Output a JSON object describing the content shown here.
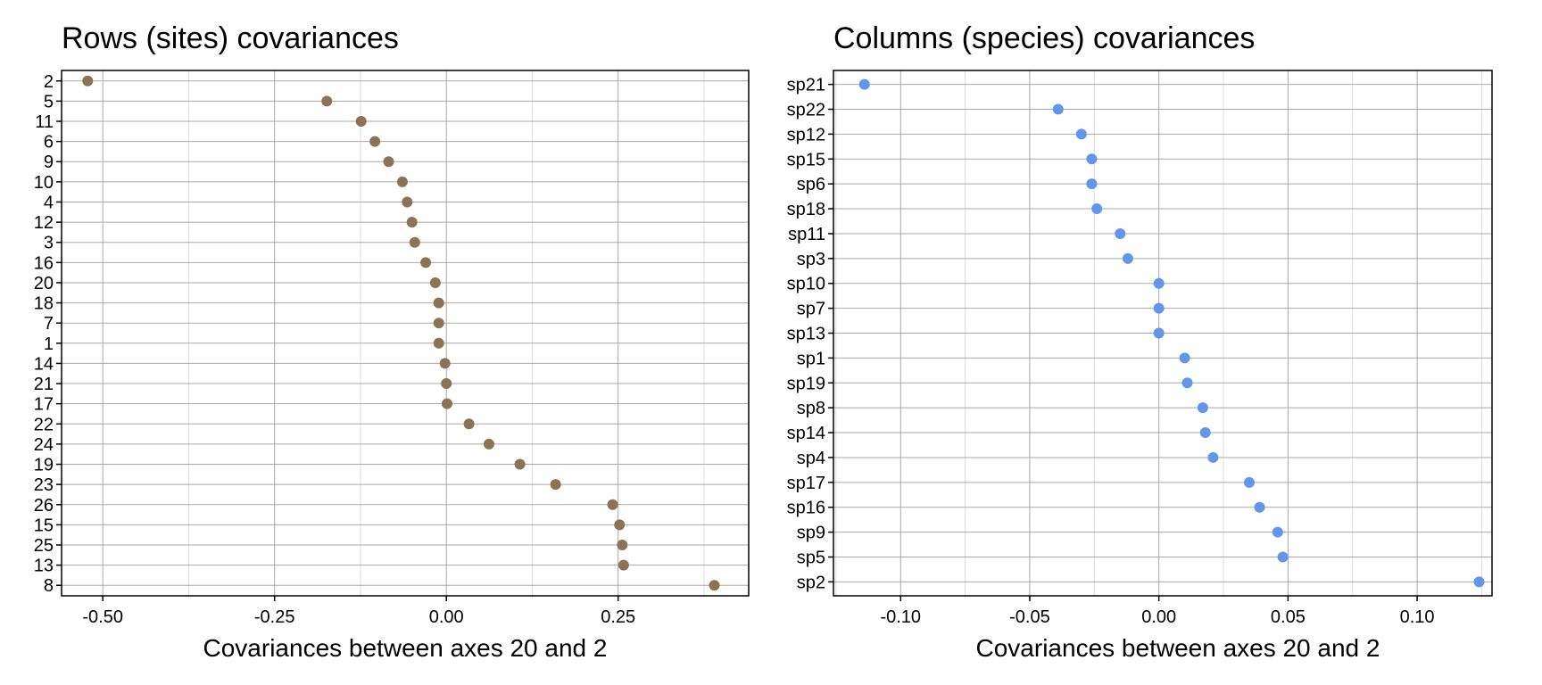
{
  "chart_data": [
    {
      "type": "scatter",
      "title": "Rows (sites) covariances",
      "xlabel": "Covariances between axes 20 and 2",
      "ylabel": "",
      "xlim": [
        -0.56,
        0.44
      ],
      "xticks": [
        -0.5,
        -0.25,
        0.0,
        0.25
      ],
      "xtick_labels": [
        "-0.50",
        "-0.25",
        "0.00",
        "0.25"
      ],
      "color": "#8B7355",
      "categories": [
        "2",
        "5",
        "11",
        "6",
        "9",
        "10",
        "4",
        "12",
        "3",
        "16",
        "20",
        "18",
        "7",
        "1",
        "14",
        "21",
        "17",
        "22",
        "24",
        "19",
        "23",
        "26",
        "15",
        "25",
        "13",
        "8"
      ],
      "values": [
        -0.522,
        -0.174,
        -0.124,
        -0.104,
        -0.084,
        -0.064,
        -0.057,
        -0.05,
        -0.046,
        -0.03,
        -0.016,
        -0.011,
        -0.011,
        -0.011,
        -0.002,
        0.0,
        0.001,
        0.033,
        0.062,
        0.107,
        0.159,
        0.242,
        0.252,
        0.256,
        0.258,
        0.39
      ],
      "grid": true
    },
    {
      "type": "scatter",
      "title": "Columns (species) covariances",
      "xlabel": "Covariances between axes 20 and 2",
      "ylabel": "",
      "xlim": [
        -0.126,
        0.129
      ],
      "xticks": [
        -0.1,
        -0.05,
        0.0,
        0.05,
        0.1
      ],
      "xtick_labels": [
        "-0.10",
        "-0.05",
        "0.00",
        "0.05",
        "0.10"
      ],
      "color": "#6495ED",
      "categories": [
        "sp21",
        "sp22",
        "sp12",
        "sp15",
        "sp6",
        "sp18",
        "sp11",
        "sp3",
        "sp10",
        "sp7",
        "sp13",
        "sp1",
        "sp19",
        "sp8",
        "sp14",
        "sp4",
        "sp17",
        "sp16",
        "sp9",
        "sp5",
        "sp2"
      ],
      "values": [
        -0.114,
        -0.039,
        -0.03,
        -0.026,
        -0.026,
        -0.024,
        -0.015,
        -0.012,
        0.0,
        0.0,
        0.0,
        0.01,
        0.011,
        0.017,
        0.018,
        0.021,
        0.035,
        0.039,
        0.046,
        0.048,
        0.124
      ],
      "grid": true
    }
  ]
}
